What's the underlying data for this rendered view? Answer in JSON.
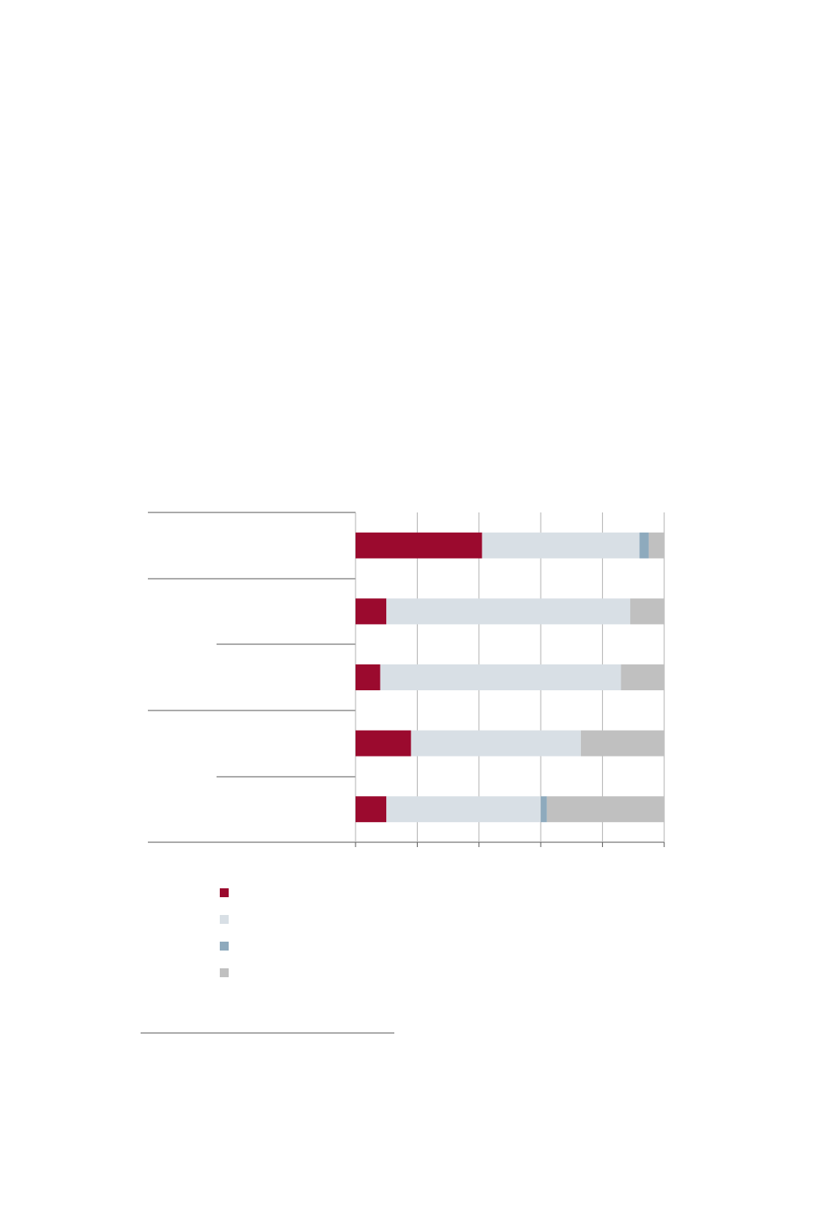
{
  "chart_data": {
    "type": "stacked-barh",
    "categories": [
      null,
      null,
      null,
      null,
      null
    ],
    "series": [
      {
        "color": "#9b0a2e",
        "values": [
          41,
          10,
          8,
          18,
          10
        ]
      },
      {
        "color": "#d8dfe5",
        "values": [
          51,
          79,
          78,
          55,
          50
        ]
      },
      {
        "color": "#8eaabd",
        "values": [
          3,
          0,
          0,
          0,
          2
        ]
      },
      {
        "color": "#c0c0c0",
        "values": [
          5,
          11,
          14,
          27,
          38
        ]
      }
    ],
    "xlim": [
      0,
      100
    ],
    "xticks": [
      0,
      20,
      40,
      60,
      80,
      100
    ],
    "grid": true
  }
}
